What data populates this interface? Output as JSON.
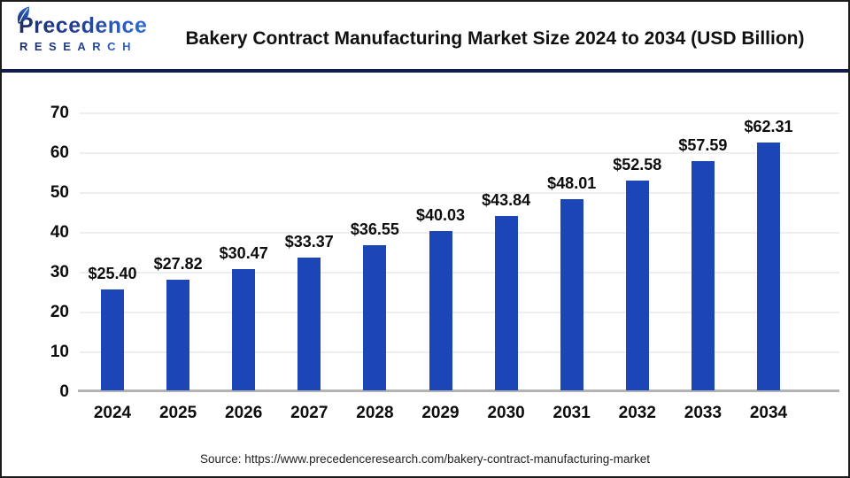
{
  "header": {
    "logo": {
      "name": "Precedence Research",
      "line1": "Precedence",
      "line2": "RESEARCH"
    },
    "title": "Bakery Contract Manufacturing Market Size 2024 to 2034 (USD Billion)"
  },
  "chart_data": {
    "type": "bar",
    "title": "Bakery Contract Manufacturing Market Size 2024 to 2034 (USD Billion)",
    "unit": "USD Billion",
    "categories": [
      "2024",
      "2025",
      "2026",
      "2027",
      "2028",
      "2029",
      "2030",
      "2031",
      "2032",
      "2033",
      "2034"
    ],
    "values": [
      25.4,
      27.82,
      30.47,
      33.37,
      36.55,
      40.03,
      43.84,
      48.01,
      52.58,
      57.59,
      62.31
    ],
    "value_labels": [
      "$25.40",
      "$27.82",
      "$30.47",
      "$33.37",
      "$36.55",
      "$40.03",
      "$43.84",
      "$48.01",
      "$52.58",
      "$57.59",
      "$62.31"
    ],
    "ylim": [
      0,
      70
    ],
    "yticks": [
      0,
      10,
      20,
      30,
      40,
      50,
      60,
      70
    ],
    "grid": true,
    "legend": false,
    "bar_color": "#1c46b8"
  },
  "footer": {
    "source": "Source: https://www.precedenceresearch.com/bakery-contract-manufacturing-market"
  },
  "colors": {
    "bar": "#1c46b8",
    "header_separator": "#101c4d",
    "gridline": "#eeeeee",
    "axis_line": "#b3b3b3",
    "logo_dark": "#1d2d69",
    "logo_light": "#2f6cd9",
    "text": "#0d0d0d"
  }
}
